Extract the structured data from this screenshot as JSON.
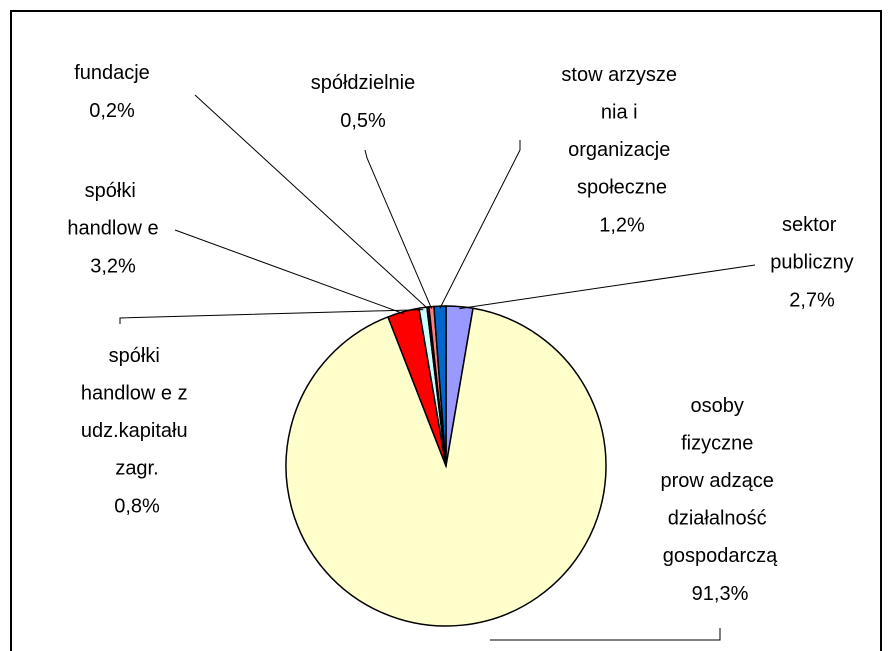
{
  "chart_data": {
    "type": "pie",
    "categories": [
      "sektor publiczny",
      "osoby fizyczne prow adzące działalność gospodarczą",
      "spółki handlow e",
      "spółki handlow e z udz.kapitału zagr.",
      "fundacje",
      "spółdzielnie",
      "stow arzysze nia i organizacje społeczne"
    ],
    "values": [
      2.7,
      91.3,
      3.2,
      0.8,
      0.2,
      0.5,
      1.2
    ],
    "value_labels": [
      "2,7%",
      "91,3%",
      "3,2%",
      "0,8%",
      "0,2%",
      "0,5%",
      "1,2%"
    ],
    "colors": [
      "#9999ff",
      "#ffffcc",
      "#ff0000",
      "#ccffff",
      "#660066",
      "#ff8080",
      "#0066cc"
    ]
  }
}
